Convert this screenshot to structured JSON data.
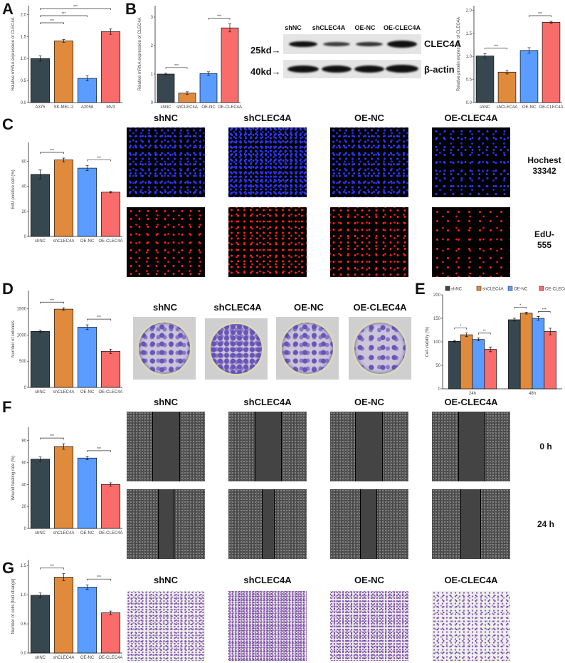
{
  "groups": [
    "shNC",
    "shCLEC4A",
    "OE-NC",
    "OE-CLEC4A"
  ],
  "colors": {
    "shNC": "#37474f",
    "shCLEC4A": "#e08a3c",
    "OE-NC": "#5a9cff",
    "OE-CLEC4A": "#f86c6b",
    "bar_border": "#111111",
    "blue_stain": "#2a33ff",
    "red_stain": "#ff2222",
    "crystal_violet": "#6a55b5"
  },
  "panels": {
    "A": {
      "letter": "A"
    },
    "B": {
      "letter": "B"
    },
    "C": {
      "letter": "C",
      "row_labels": [
        "Hochest\n33342",
        "EdU-\n555"
      ],
      "row_label_1a": "Hochest",
      "row_label_1b": "33342",
      "row_label_2a": "EdU-",
      "row_label_2b": "555"
    },
    "D": {
      "letter": "D"
    },
    "E": {
      "letter": "E"
    },
    "F": {
      "letter": "F",
      "row_label_0h": "0 h",
      "row_label_24h": "24 h"
    },
    "G": {
      "letter": "G"
    }
  },
  "western_blot": {
    "lanes": [
      "shNC",
      "shCLEC4A",
      "OE-NC",
      "OE-CLEC4A"
    ],
    "bands": [
      {
        "marker": "25kd→",
        "protein": "CLEC4A"
      },
      {
        "marker": "40kd→",
        "protein": "β-actin"
      }
    ]
  },
  "image_titles": {
    "C": [
      "shNC",
      "shCLEC4A",
      "OE-NC",
      "OE-CLEC4A"
    ],
    "D": [
      "shNC",
      "shCLEC4A",
      "OE-NC",
      "OE-CLEC4A"
    ],
    "F": [
      "shNC",
      "shCLEC4A",
      "OE-NC",
      "OE-CLEC4A"
    ],
    "G": [
      "shNC",
      "shCLEC4A",
      "OE-NC",
      "OE-CLEC4A"
    ]
  },
  "chart_data": [
    {
      "panel": "A",
      "type": "bar",
      "categories": [
        "A375",
        "SK-MEL-2",
        "A2058",
        "MV3"
      ],
      "values": [
        1.0,
        1.4,
        0.55,
        1.61
      ],
      "errors": [
        0.06,
        0.03,
        0.06,
        0.06
      ],
      "ylabel": "Relative mRNA expression of CLEC4A",
      "ylim": [
        0,
        2.2
      ],
      "yticks": [
        0.0,
        0.5,
        1.0,
        1.5,
        2.0
      ],
      "colors": [
        "#37474f",
        "#e08a3c",
        "#5a9cff",
        "#f86c6b"
      ],
      "significance": [
        {
          "from": 0,
          "to": 1,
          "label": "***"
        },
        {
          "from": 0,
          "to": 2,
          "label": "***"
        },
        {
          "from": 0,
          "to": 3,
          "label": "***"
        }
      ]
    },
    {
      "panel": "B-mRNA",
      "type": "bar",
      "categories": [
        "shNC",
        "shCLEC4A",
        "OE-NC",
        "OE-CLEC4A"
      ],
      "values": [
        1.0,
        0.33,
        1.02,
        2.62
      ],
      "errors": [
        0.03,
        0.05,
        0.06,
        0.14
      ],
      "ylabel": "Relative mRNA expression of CLEC4A",
      "ylim": [
        0,
        3.4
      ],
      "yticks": [
        0,
        1,
        2,
        3
      ],
      "colors": [
        "#37474f",
        "#e08a3c",
        "#5a9cff",
        "#f86c6b"
      ],
      "significance": [
        {
          "from": 0,
          "to": 1,
          "label": "***"
        },
        {
          "from": 2,
          "to": 3,
          "label": "***"
        }
      ]
    },
    {
      "panel": "B-protein",
      "type": "bar",
      "categories": [
        "shNC",
        "shCLEC4A",
        "OE-NC",
        "OE-CLEC4A"
      ],
      "values": [
        1.01,
        0.66,
        1.13,
        1.74
      ],
      "errors": [
        0.05,
        0.04,
        0.06,
        0.02
      ],
      "ylabel": "Relative protein expression of CLEC4A",
      "ylim": [
        0,
        2.1
      ],
      "yticks": [
        0.0,
        0.5,
        1.0,
        1.5,
        2.0
      ],
      "colors": [
        "#37474f",
        "#e08a3c",
        "#5a9cff",
        "#f86c6b"
      ],
      "significance": [
        {
          "from": 0,
          "to": 1,
          "label": "***"
        },
        {
          "from": 2,
          "to": 3,
          "label": "***"
        }
      ]
    },
    {
      "panel": "C",
      "type": "bar",
      "categories": [
        "shNC",
        "shCLEC4A",
        "OE-NC",
        "OE-CLEC4A"
      ],
      "values": [
        49.5,
        61.0,
        54.5,
        35.3
      ],
      "errors": [
        3.5,
        1.5,
        2.0,
        0.6
      ],
      "ylabel": "EdU positive cell (%)",
      "ylim": [
        0,
        75
      ],
      "yticks": [
        0,
        20,
        40,
        60
      ],
      "colors": [
        "#37474f",
        "#e08a3c",
        "#5a9cff",
        "#f86c6b"
      ],
      "significance": [
        {
          "from": 0,
          "to": 1,
          "label": "***"
        },
        {
          "from": 2,
          "to": 3,
          "label": "***"
        }
      ]
    },
    {
      "panel": "D",
      "type": "bar",
      "categories": [
        "shNC",
        "shCLEC4A",
        "OE-NC",
        "OE-CLEC4A"
      ],
      "values": [
        1070,
        1495,
        1150,
        690
      ],
      "errors": [
        25,
        25,
        45,
        40
      ],
      "ylabel": "Number of colonies",
      "ylim": [
        0,
        1850
      ],
      "yticks": [
        0,
        500,
        1000,
        1500
      ],
      "colors": [
        "#37474f",
        "#e08a3c",
        "#5a9cff",
        "#f86c6b"
      ],
      "significance": [
        {
          "from": 0,
          "to": 1,
          "label": "***"
        },
        {
          "from": 2,
          "to": 3,
          "label": "***"
        }
      ]
    },
    {
      "panel": "E",
      "type": "bar",
      "categories": [
        "24h",
        "48h"
      ],
      "series": [
        {
          "name": "shNC",
          "values": [
            101,
            147
          ],
          "errors": [
            2,
            3
          ]
        },
        {
          "name": "shCLEC4A",
          "values": [
            115,
            161
          ],
          "errors": [
            4,
            2
          ]
        },
        {
          "name": "OE-NC",
          "values": [
            105,
            150
          ],
          "errors": [
            3,
            4
          ]
        },
        {
          "name": "OE-CLEC4A",
          "values": [
            84,
            122
          ],
          "errors": [
            5,
            7
          ]
        }
      ],
      "ylabel": "Cell viability (%)",
      "ylim": [
        0,
        200
      ],
      "yticks": [
        0,
        50,
        100,
        150,
        200
      ],
      "legend_position": "top",
      "significance": [
        {
          "group": "24h",
          "from": 0,
          "to": 1,
          "label": "*"
        },
        {
          "group": "24h",
          "from": 2,
          "to": 3,
          "label": "**"
        },
        {
          "group": "48h",
          "from": 0,
          "to": 1,
          "label": "*"
        },
        {
          "group": "48h",
          "from": 2,
          "to": 3,
          "label": "***"
        }
      ]
    },
    {
      "panel": "F",
      "type": "bar",
      "categories": [
        "shNC",
        "shCLEC4A",
        "OE-NC",
        "OE-CLEC4A"
      ],
      "values": [
        63,
        74.5,
        64,
        40
      ],
      "errors": [
        2,
        2.5,
        1.5,
        1.5
      ],
      "ylabel": "Wound healing rate (%)",
      "ylim": [
        0,
        92
      ],
      "yticks": [
        0,
        20,
        40,
        60,
        80
      ],
      "colors": [
        "#37474f",
        "#e08a3c",
        "#5a9cff",
        "#f86c6b"
      ],
      "significance": [
        {
          "from": 0,
          "to": 1,
          "label": "***"
        },
        {
          "from": 2,
          "to": 3,
          "label": "***"
        }
      ]
    },
    {
      "panel": "G",
      "type": "bar",
      "categories": [
        "shNC",
        "shCLEC4A",
        "OE-NC",
        "OE-CLEC4A"
      ],
      "values": [
        0.99,
        1.3,
        1.13,
        0.69
      ],
      "errors": [
        0.04,
        0.06,
        0.04,
        0.03
      ],
      "ylabel": "Number of cells [fold change]",
      "ylim": [
        0,
        1.6
      ],
      "yticks": [
        0.0,
        0.5,
        1.0,
        1.5
      ],
      "colors": [
        "#37474f",
        "#e08a3c",
        "#5a9cff",
        "#f86c6b"
      ],
      "significance": [
        {
          "from": 0,
          "to": 1,
          "label": "***"
        },
        {
          "from": 2,
          "to": 3,
          "label": "***"
        }
      ]
    }
  ]
}
